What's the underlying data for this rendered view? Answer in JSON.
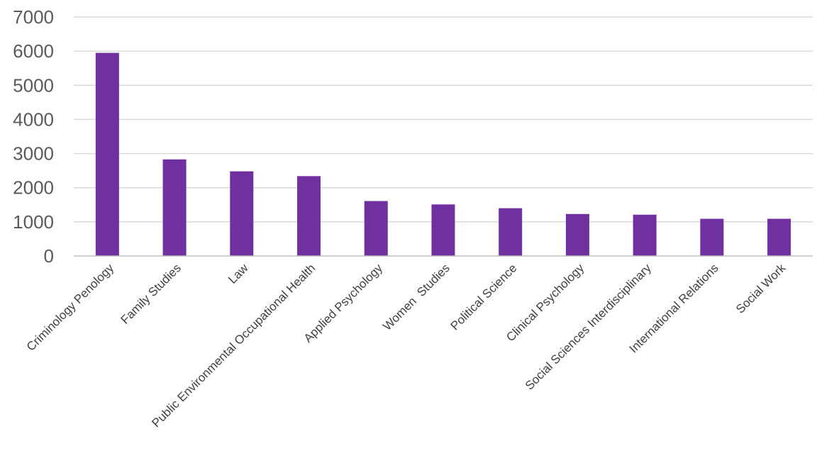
{
  "chart_data": {
    "type": "bar",
    "title": "",
    "xlabel": "",
    "ylabel": "",
    "categories": [
      "Criminology Penology",
      "Family Studies",
      "Law",
      "Public Environmental Occupational Health",
      "Applied Psychology",
      "Women  Studies",
      "Political Science",
      "Clinical Psychology",
      "Social Sciences Interdisciplinary",
      "International Relations",
      "Social Work"
    ],
    "values": [
      5950,
      2830,
      2480,
      2340,
      1610,
      1510,
      1400,
      1230,
      1210,
      1090,
      1090
    ],
    "ylim": [
      0,
      7000
    ],
    "yticks": [
      0,
      1000,
      2000,
      3000,
      4000,
      5000,
      6000,
      7000
    ],
    "grid": true,
    "legend": "none",
    "bar_color": "#7030a0",
    "grid_color": "#d9d9d9"
  }
}
